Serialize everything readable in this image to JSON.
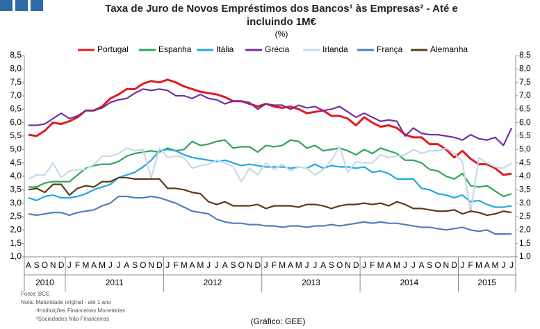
{
  "chart_data": {
    "type": "line",
    "title": [
      "Taxa de Juro de Novos Empréstimos dos Bancos¹ às Empresas² - Até e",
      "incluindo 1M€"
    ],
    "subtitle": "(%)",
    "categories": [
      "A",
      "S",
      "O",
      "N",
      "D",
      "J",
      "F",
      "M",
      "A",
      "M",
      "J",
      "J",
      "A",
      "S",
      "O",
      "N",
      "D",
      "J",
      "F",
      "M",
      "A",
      "M",
      "J",
      "J",
      "A",
      "S",
      "O",
      "N",
      "D",
      "J",
      "F",
      "M",
      "A",
      "M",
      "J",
      "J",
      "A",
      "S",
      "O",
      "N",
      "D",
      "J",
      "F",
      "M",
      "A",
      "M",
      "J",
      "J",
      "A",
      "S",
      "O",
      "N",
      "D",
      "J",
      "F",
      "M",
      "A",
      "M",
      "J",
      "J"
    ],
    "years": [
      "2010",
      "2011",
      "2012",
      "2013",
      "2014",
      "2015"
    ],
    "series": [
      {
        "name": "Portugal",
        "color": "#e3191c",
        "values": [
          5.55,
          5.5,
          5.7,
          6.0,
          5.95,
          6.05,
          6.2,
          6.45,
          6.45,
          6.6,
          6.9,
          7.05,
          7.25,
          7.25,
          7.45,
          7.55,
          7.5,
          7.6,
          7.5,
          7.35,
          7.25,
          7.15,
          7.1,
          7.05,
          6.95,
          6.8,
          6.8,
          6.7,
          6.6,
          6.7,
          6.6,
          6.55,
          6.6,
          6.5,
          6.35,
          6.4,
          6.45,
          6.25,
          6.25,
          6.15,
          5.9,
          6.2,
          6.0,
          5.85,
          5.9,
          5.8,
          5.55,
          5.45,
          5.45,
          5.2,
          5.2,
          5.0,
          4.7,
          4.95,
          4.65,
          4.45,
          4.45,
          4.3,
          4.05,
          4.1
        ]
      },
      {
        "name": "Espanha",
        "color": "#2ea55c",
        "values": [
          3.6,
          3.6,
          3.75,
          3.8,
          3.8,
          3.8,
          4.05,
          4.3,
          4.4,
          4.45,
          4.45,
          4.55,
          4.75,
          4.85,
          4.9,
          4.95,
          4.9,
          5.05,
          4.95,
          5.0,
          5.3,
          5.15,
          5.2,
          5.3,
          5.35,
          5.05,
          5.1,
          5.1,
          4.9,
          5.15,
          5.1,
          5.15,
          5.35,
          5.3,
          5.05,
          5.15,
          4.95,
          5.0,
          5.05,
          4.95,
          4.8,
          5.0,
          4.85,
          5.05,
          4.95,
          4.85,
          4.6,
          4.6,
          4.5,
          4.25,
          4.2,
          4.0,
          3.9,
          4.1,
          3.65,
          3.6,
          3.65,
          3.45,
          3.25,
          3.35
        ]
      },
      {
        "name": "Itália",
        "color": "#1ea8e2",
        "values": [
          3.2,
          3.1,
          3.25,
          3.3,
          3.2,
          3.2,
          3.25,
          3.35,
          3.5,
          3.6,
          3.7,
          3.95,
          4.05,
          4.15,
          4.35,
          4.6,
          4.95,
          5.0,
          4.95,
          4.8,
          4.7,
          4.65,
          4.6,
          4.55,
          4.6,
          4.5,
          4.4,
          4.45,
          4.4,
          4.35,
          4.35,
          4.35,
          4.3,
          4.35,
          4.3,
          4.45,
          4.3,
          4.4,
          4.35,
          4.35,
          4.3,
          4.35,
          4.15,
          4.2,
          4.1,
          3.9,
          3.9,
          3.9,
          3.55,
          3.5,
          3.35,
          3.3,
          3.2,
          3.3,
          3.05,
          3.1,
          2.95,
          2.85,
          2.85,
          2.9
        ]
      },
      {
        "name": "Grécia",
        "color": "#7030a0",
        "values": [
          5.9,
          5.9,
          5.95,
          6.15,
          6.35,
          6.15,
          6.25,
          6.45,
          6.45,
          6.55,
          6.75,
          6.85,
          6.9,
          7.1,
          7.25,
          7.2,
          7.25,
          7.2,
          7.0,
          7.0,
          6.9,
          7.05,
          6.9,
          6.85,
          6.7,
          6.8,
          6.8,
          6.75,
          6.5,
          6.7,
          6.65,
          6.65,
          6.5,
          6.65,
          6.55,
          6.6,
          6.45,
          6.5,
          6.6,
          6.4,
          6.2,
          6.35,
          6.2,
          6.05,
          6.1,
          6.05,
          5.5,
          5.8,
          5.6,
          5.55,
          5.55,
          5.5,
          5.45,
          5.35,
          5.55,
          5.4,
          5.35,
          5.45,
          5.15,
          5.8
        ]
      },
      {
        "name": "Irlanda",
        "color": "#c6d9e9",
        "values": [
          3.9,
          4.05,
          4.05,
          4.5,
          3.95,
          4.2,
          4.25,
          4.25,
          4.45,
          4.75,
          4.75,
          4.85,
          5.05,
          4.95,
          5.0,
          3.95,
          5.05,
          4.7,
          4.75,
          4.7,
          4.3,
          4.4,
          4.45,
          4.6,
          4.5,
          4.35,
          3.8,
          4.3,
          4.05,
          4.5,
          4.25,
          4.45,
          4.2,
          4.35,
          4.3,
          4.05,
          4.25,
          4.6,
          5.1,
          4.15,
          4.55,
          4.5,
          4.5,
          4.8,
          4.7,
          4.75,
          4.8,
          5.0,
          4.85,
          4.95,
          4.95,
          5.05,
          4.85,
          4.55,
          2.65,
          4.7,
          4.5,
          4.35,
          4.3,
          4.5
        ]
      },
      {
        "name": "França",
        "color": "#4f7fba",
        "values": [
          2.6,
          2.55,
          2.6,
          2.65,
          2.65,
          2.55,
          2.65,
          2.7,
          2.75,
          2.9,
          3.0,
          3.25,
          3.25,
          3.2,
          3.2,
          3.25,
          3.2,
          3.1,
          3.0,
          2.85,
          2.7,
          2.65,
          2.6,
          2.4,
          2.3,
          2.25,
          2.25,
          2.2,
          2.2,
          2.15,
          2.15,
          2.1,
          2.15,
          2.15,
          2.1,
          2.15,
          2.15,
          2.2,
          2.15,
          2.2,
          2.25,
          2.3,
          2.25,
          2.3,
          2.25,
          2.25,
          2.2,
          2.15,
          2.1,
          2.1,
          2.05,
          2.0,
          2.05,
          2.1,
          2.0,
          1.95,
          2.0,
          1.85,
          1.85,
          1.85
        ]
      },
      {
        "name": "Alemanha",
        "color": "#5b3b12",
        "values": [
          3.5,
          3.55,
          3.4,
          3.7,
          3.7,
          3.3,
          3.55,
          3.65,
          3.6,
          3.8,
          3.8,
          3.95,
          3.95,
          3.9,
          3.9,
          3.9,
          3.9,
          3.55,
          3.55,
          3.5,
          3.4,
          3.35,
          3.05,
          2.95,
          3.05,
          2.9,
          2.9,
          2.9,
          2.95,
          2.8,
          2.9,
          2.9,
          2.9,
          2.85,
          2.95,
          2.95,
          2.9,
          2.8,
          2.9,
          2.95,
          2.95,
          3.0,
          2.95,
          3.0,
          2.9,
          3.05,
          2.95,
          2.8,
          2.8,
          2.75,
          2.7,
          2.7,
          2.75,
          2.6,
          2.7,
          2.65,
          2.55,
          2.6,
          2.7,
          2.65
        ]
      }
    ],
    "ylim": [
      1,
      8.5
    ],
    "yticks": [
      {
        "value": 1,
        "label": "1,0"
      },
      {
        "value": 1.5,
        "label": "1,5"
      },
      {
        "value": 2,
        "label": "2,0"
      },
      {
        "value": 2.5,
        "label": "2,5"
      },
      {
        "value": 3,
        "label": "3,0"
      },
      {
        "value": 3.5,
        "label": "3,5"
      },
      {
        "value": 4,
        "label": "4,0"
      },
      {
        "value": 4.5,
        "label": "4,5"
      },
      {
        "value": 5,
        "label": "5,0"
      },
      {
        "value": 5.5,
        "label": "5,5"
      },
      {
        "value": 6,
        "label": "6,0"
      },
      {
        "value": 6.5,
        "label": "6,5"
      },
      {
        "value": 7,
        "label": "7,0"
      },
      {
        "value": 7.5,
        "label": "7,5"
      },
      {
        "value": 8,
        "label": "8,0"
      },
      {
        "value": 8.5,
        "label": "8,5"
      }
    ],
    "y2lim": [
      1,
      8.5
    ],
    "y2ticks": [
      {
        "value": 1,
        "label": "1,0"
      },
      {
        "value": 1.5,
        "label": "1,5"
      },
      {
        "value": 2,
        "label": "2,0"
      },
      {
        "value": 2.5,
        "label": "2,5"
      },
      {
        "value": 3,
        "label": "3,0"
      },
      {
        "value": 3.5,
        "label": "3,5"
      },
      {
        "value": 4,
        "label": "4,0"
      },
      {
        "value": 4.5,
        "label": "4,5"
      },
      {
        "value": 5,
        "label": "5,0"
      },
      {
        "value": 5.5,
        "label": "5,5"
      },
      {
        "value": 6,
        "label": "6,0"
      },
      {
        "value": 6.5,
        "label": "6,5"
      },
      {
        "value": 7,
        "label": "7,0"
      },
      {
        "value": 7.5,
        "label": "7,5"
      },
      {
        "value": 8,
        "label": "8,0"
      },
      {
        "value": 8.5,
        "label": "8,5"
      }
    ],
    "legend": "top",
    "notes": [
      "Fonte: BCE",
      "Nota: Maturidade original - até 1 ano",
      "¹Instituições Financeiras Monetárias",
      "²Sociedades Não Financeiras"
    ],
    "credit": "(Gráfico: GEE)"
  }
}
